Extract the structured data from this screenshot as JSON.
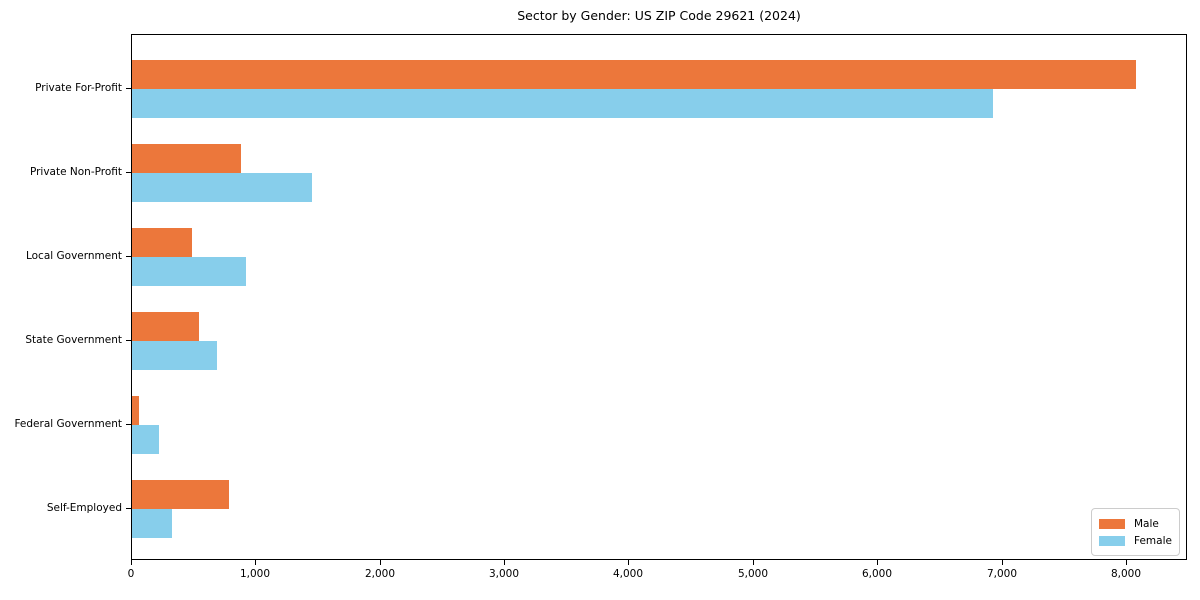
{
  "chart_data": {
    "type": "bar",
    "orientation": "horizontal",
    "title": "Sector by Gender: US ZIP Code 29621 (2024)",
    "categories": [
      "Private For-Profit",
      "Private Non-Profit",
      "Local Government",
      "State Government",
      "Federal Government",
      "Self-Employed"
    ],
    "series": [
      {
        "name": "Male",
        "color": "#ec773b",
        "values": [
          8070,
          875,
          480,
          540,
          55,
          780
        ]
      },
      {
        "name": "Female",
        "color": "#87ceeb",
        "values": [
          6925,
          1445,
          915,
          680,
          215,
          320
        ]
      }
    ],
    "xlabel": "",
    "ylabel": "",
    "xlim": [
      0,
      8475
    ],
    "xticks": [
      0,
      1000,
      2000,
      3000,
      4000,
      5000,
      6000,
      7000,
      8000
    ],
    "xtick_labels": [
      "0",
      "1,000",
      "2,000",
      "3,000",
      "4,000",
      "5,000",
      "6,000",
      "7,000",
      "8,000"
    ],
    "grid": false,
    "legend_position": "lower right",
    "colors": {
      "male": "#ec773b",
      "female": "#87ceeb",
      "spine": "#000000",
      "legend_border": "#cccccc"
    }
  }
}
